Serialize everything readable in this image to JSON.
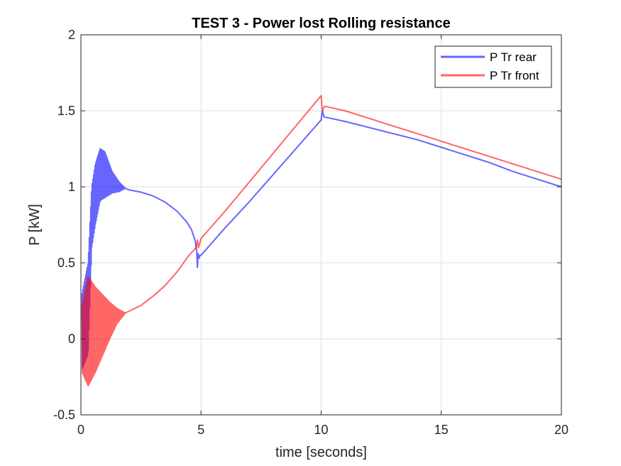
{
  "chart_data": {
    "type": "line",
    "title": "TEST 3 - Power lost Rolling resistance",
    "xlabel": "time [seconds]",
    "ylabel": "P [kW]",
    "xlim": [
      0,
      20
    ],
    "ylim": [
      -0.5,
      2
    ],
    "xticks": [
      0,
      5,
      10,
      15,
      20
    ],
    "xtick_labels": [
      "0",
      "5",
      "10",
      "15",
      "20"
    ],
    "yticks": [
      -0.5,
      0,
      0.5,
      1,
      1.5,
      2
    ],
    "ytick_labels": [
      "-0.5",
      "0",
      "0.5",
      "1",
      "1.5",
      "2"
    ],
    "grid": true,
    "legend_position": "top-right",
    "series": [
      {
        "name": "P Tr rear",
        "color": "#0000ff",
        "oscillation": {
          "t_start": 0.05,
          "t_end": 1.85,
          "period": 0.03,
          "center": [
            [
              0.05,
              0.05
            ],
            [
              0.3,
              0.2
            ],
            [
              0.45,
              0.8
            ],
            [
              0.6,
              0.95
            ],
            [
              0.8,
              1.08
            ],
            [
              1.0,
              1.08
            ],
            [
              1.3,
              1.03
            ],
            [
              1.6,
              1.0
            ],
            [
              1.85,
              0.99
            ]
          ],
          "amplitude": [
            [
              0.05,
              0.25
            ],
            [
              0.3,
              0.3
            ],
            [
              0.45,
              0.2
            ],
            [
              0.6,
              0.2
            ],
            [
              0.8,
              0.17
            ],
            [
              1.0,
              0.15
            ],
            [
              1.3,
              0.07
            ],
            [
              1.6,
              0.03
            ],
            [
              1.85,
              0.0
            ]
          ]
        },
        "points": [
          [
            1.85,
            0.99
          ],
          [
            2.0,
            0.98
          ],
          [
            2.5,
            0.965
          ],
          [
            3.0,
            0.94
          ],
          [
            3.5,
            0.9
          ],
          [
            4.0,
            0.84
          ],
          [
            4.4,
            0.77
          ],
          [
            4.6,
            0.72
          ],
          [
            4.75,
            0.65
          ],
          [
            4.82,
            0.58
          ],
          [
            4.85,
            0.47
          ],
          [
            4.88,
            0.56
          ],
          [
            4.92,
            0.53
          ],
          [
            4.96,
            0.55
          ],
          [
            5.0,
            0.55
          ],
          [
            6.0,
            0.73
          ],
          [
            7.0,
            0.9
          ],
          [
            8.0,
            1.08
          ],
          [
            9.0,
            1.26
          ],
          [
            10.0,
            1.44
          ],
          [
            10.05,
            1.5
          ],
          [
            10.12,
            1.46
          ],
          [
            11.0,
            1.43
          ],
          [
            12.0,
            1.39
          ],
          [
            13.0,
            1.35
          ],
          [
            14.0,
            1.31
          ],
          [
            15.0,
            1.26
          ],
          [
            16.0,
            1.21
          ],
          [
            17.0,
            1.16
          ],
          [
            18.0,
            1.1
          ],
          [
            19.0,
            1.05
          ],
          [
            20.0,
            1.0
          ]
        ]
      },
      {
        "name": "P Tr front",
        "color": "#ff0000",
        "oscillation": {
          "t_start": 0.05,
          "t_end": 1.85,
          "period": 0.03,
          "center": [
            [
              0.05,
              0.0
            ],
            [
              0.3,
              0.05
            ],
            [
              0.6,
              0.06
            ],
            [
              0.9,
              0.09
            ],
            [
              1.2,
              0.12
            ],
            [
              1.5,
              0.15
            ],
            [
              1.85,
              0.17
            ]
          ],
          "amplitude": [
            [
              0.05,
              0.22
            ],
            [
              0.3,
              0.36
            ],
            [
              0.6,
              0.28
            ],
            [
              0.9,
              0.2
            ],
            [
              1.2,
              0.12
            ],
            [
              1.5,
              0.05
            ],
            [
              1.85,
              0.0
            ]
          ]
        },
        "points": [
          [
            1.85,
            0.17
          ],
          [
            2.5,
            0.22
          ],
          [
            3.0,
            0.28
          ],
          [
            3.5,
            0.35
          ],
          [
            4.0,
            0.44
          ],
          [
            4.5,
            0.55
          ],
          [
            4.8,
            0.6
          ],
          [
            4.85,
            0.65
          ],
          [
            4.9,
            0.6
          ],
          [
            5.0,
            0.66
          ],
          [
            6.0,
            0.84
          ],
          [
            7.0,
            1.03
          ],
          [
            8.0,
            1.22
          ],
          [
            9.0,
            1.41
          ],
          [
            10.0,
            1.6
          ],
          [
            10.05,
            1.5
          ],
          [
            10.15,
            1.53
          ],
          [
            11.0,
            1.5
          ],
          [
            12.0,
            1.45
          ],
          [
            13.0,
            1.4
          ],
          [
            14.0,
            1.35
          ],
          [
            15.0,
            1.3
          ],
          [
            16.0,
            1.25
          ],
          [
            17.0,
            1.2
          ],
          [
            18.0,
            1.15
          ],
          [
            19.0,
            1.1
          ],
          [
            20.0,
            1.05
          ]
        ]
      }
    ]
  }
}
